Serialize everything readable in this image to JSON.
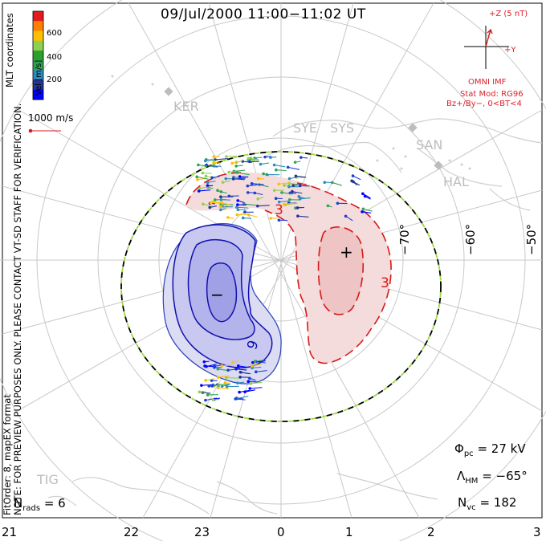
{
  "title": "09/Jul/2000 11:00−11:02 UT",
  "color_scale": {
    "label": "Vel [m/s]",
    "ticks": [
      "600",
      "400",
      "200"
    ],
    "colors": [
      "#e41a1c",
      "#ff7f00",
      "#ffbf00",
      "#8fd14f",
      "#2ca02c",
      "#31a354",
      "#2b8cbe",
      "#253494",
      "#0000ff"
    ]
  },
  "coord_label": "MLT coordinates",
  "ref_vector_label": "1000 m/s",
  "preview_notice": "NOTE: FOR PREVIEW PURPOSES ONLY. PLEASE CONTACT VT-SD STAFF FOR VERIFICATION.",
  "fit_label": "FitOrder: 8, mapEX format",
  "imf": {
    "z_label": "+Z (5 nT)",
    "y_label": "+Y",
    "source": "OMNI IMF",
    "model": "Stat Mod: RG96",
    "condition": "Bz+/By−, 0<BT<4"
  },
  "radar_sites": [
    "KER",
    "SYE",
    "SYS",
    "SAN",
    "HAL",
    "TIG"
  ],
  "lat_labels": [
    "−70°",
    "−60°",
    "−50°"
  ],
  "mlt_labels": [
    "21",
    "22",
    "23",
    "0",
    "1",
    "2",
    "3"
  ],
  "stats": {
    "nrads_sym": "N",
    "nrads_sub": "rads",
    "nrads_val": "= 6",
    "phi_sym": "Φ",
    "phi_sub": "pc",
    "phi_val": "= 27 kV",
    "lambda_sym": "Λ",
    "lambda_sub": "HM",
    "lambda_val": "= −65°",
    "nvc_sym": "N",
    "nvc_sub": "vc",
    "nvc_val": "= 182"
  },
  "contours": {
    "neg_label": "9",
    "pos_label": "3",
    "neg_sign": "−",
    "pos_sign": "+"
  }
}
